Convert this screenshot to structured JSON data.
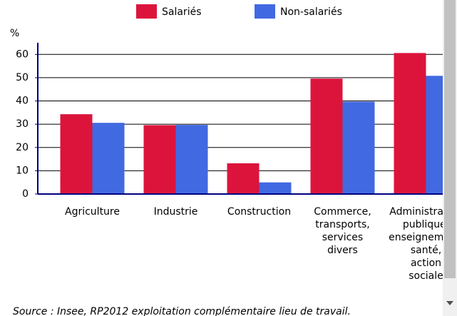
{
  "chart_data": {
    "type": "bar",
    "y_label": "%",
    "categories": [
      [
        "Agriculture"
      ],
      [
        "Industrie"
      ],
      [
        "Construction"
      ],
      [
        "Commerce,",
        "transports,",
        "services",
        "divers"
      ],
      [
        "Administration",
        "publique,",
        "enseignement,",
        "santé,",
        "action",
        "sociale"
      ]
    ],
    "series": [
      {
        "name": "Salariés",
        "color": "#dc143c",
        "values": [
          34.3,
          29.6,
          13.2,
          49.6,
          60.6
        ]
      },
      {
        "name": "Non-salariés",
        "color": "#4169e1",
        "values": [
          30.6,
          29.7,
          5,
          39.7,
          50.8
        ]
      }
    ],
    "ylim": [
      0,
      65
    ],
    "yticks": [
      0,
      10,
      20,
      30,
      40,
      50,
      60
    ],
    "grid": true,
    "source": "Source : Insee, RP2012 exploitation complémentaire lieu de travail."
  }
}
